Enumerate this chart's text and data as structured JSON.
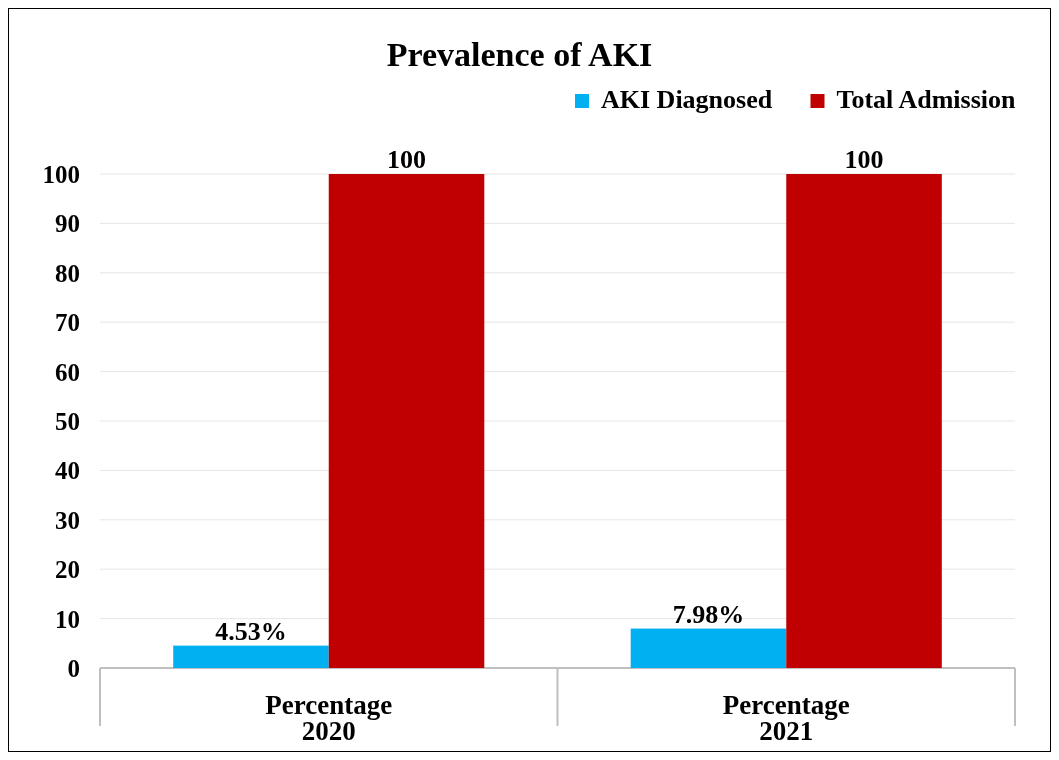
{
  "chart_data": {
    "type": "bar",
    "title": "Prevalence of AKI",
    "categories": [
      "Percentage 2020",
      "Percentage 2021"
    ],
    "series": [
      {
        "name": "AKI Diagnosed",
        "color": "#00b0f0",
        "values": [
          4.53,
          7.98
        ],
        "value_labels": [
          "4.53%",
          "7.98%"
        ]
      },
      {
        "name": "Total Admission",
        "color": "#c00000",
        "values": [
          100,
          100
        ],
        "value_labels": [
          "100",
          "100"
        ]
      }
    ],
    "ylim": [
      0,
      100
    ],
    "yticks": [
      0,
      10,
      20,
      30,
      40,
      50,
      60,
      70,
      80,
      90,
      100
    ],
    "grid": "y",
    "legend": "top right"
  }
}
